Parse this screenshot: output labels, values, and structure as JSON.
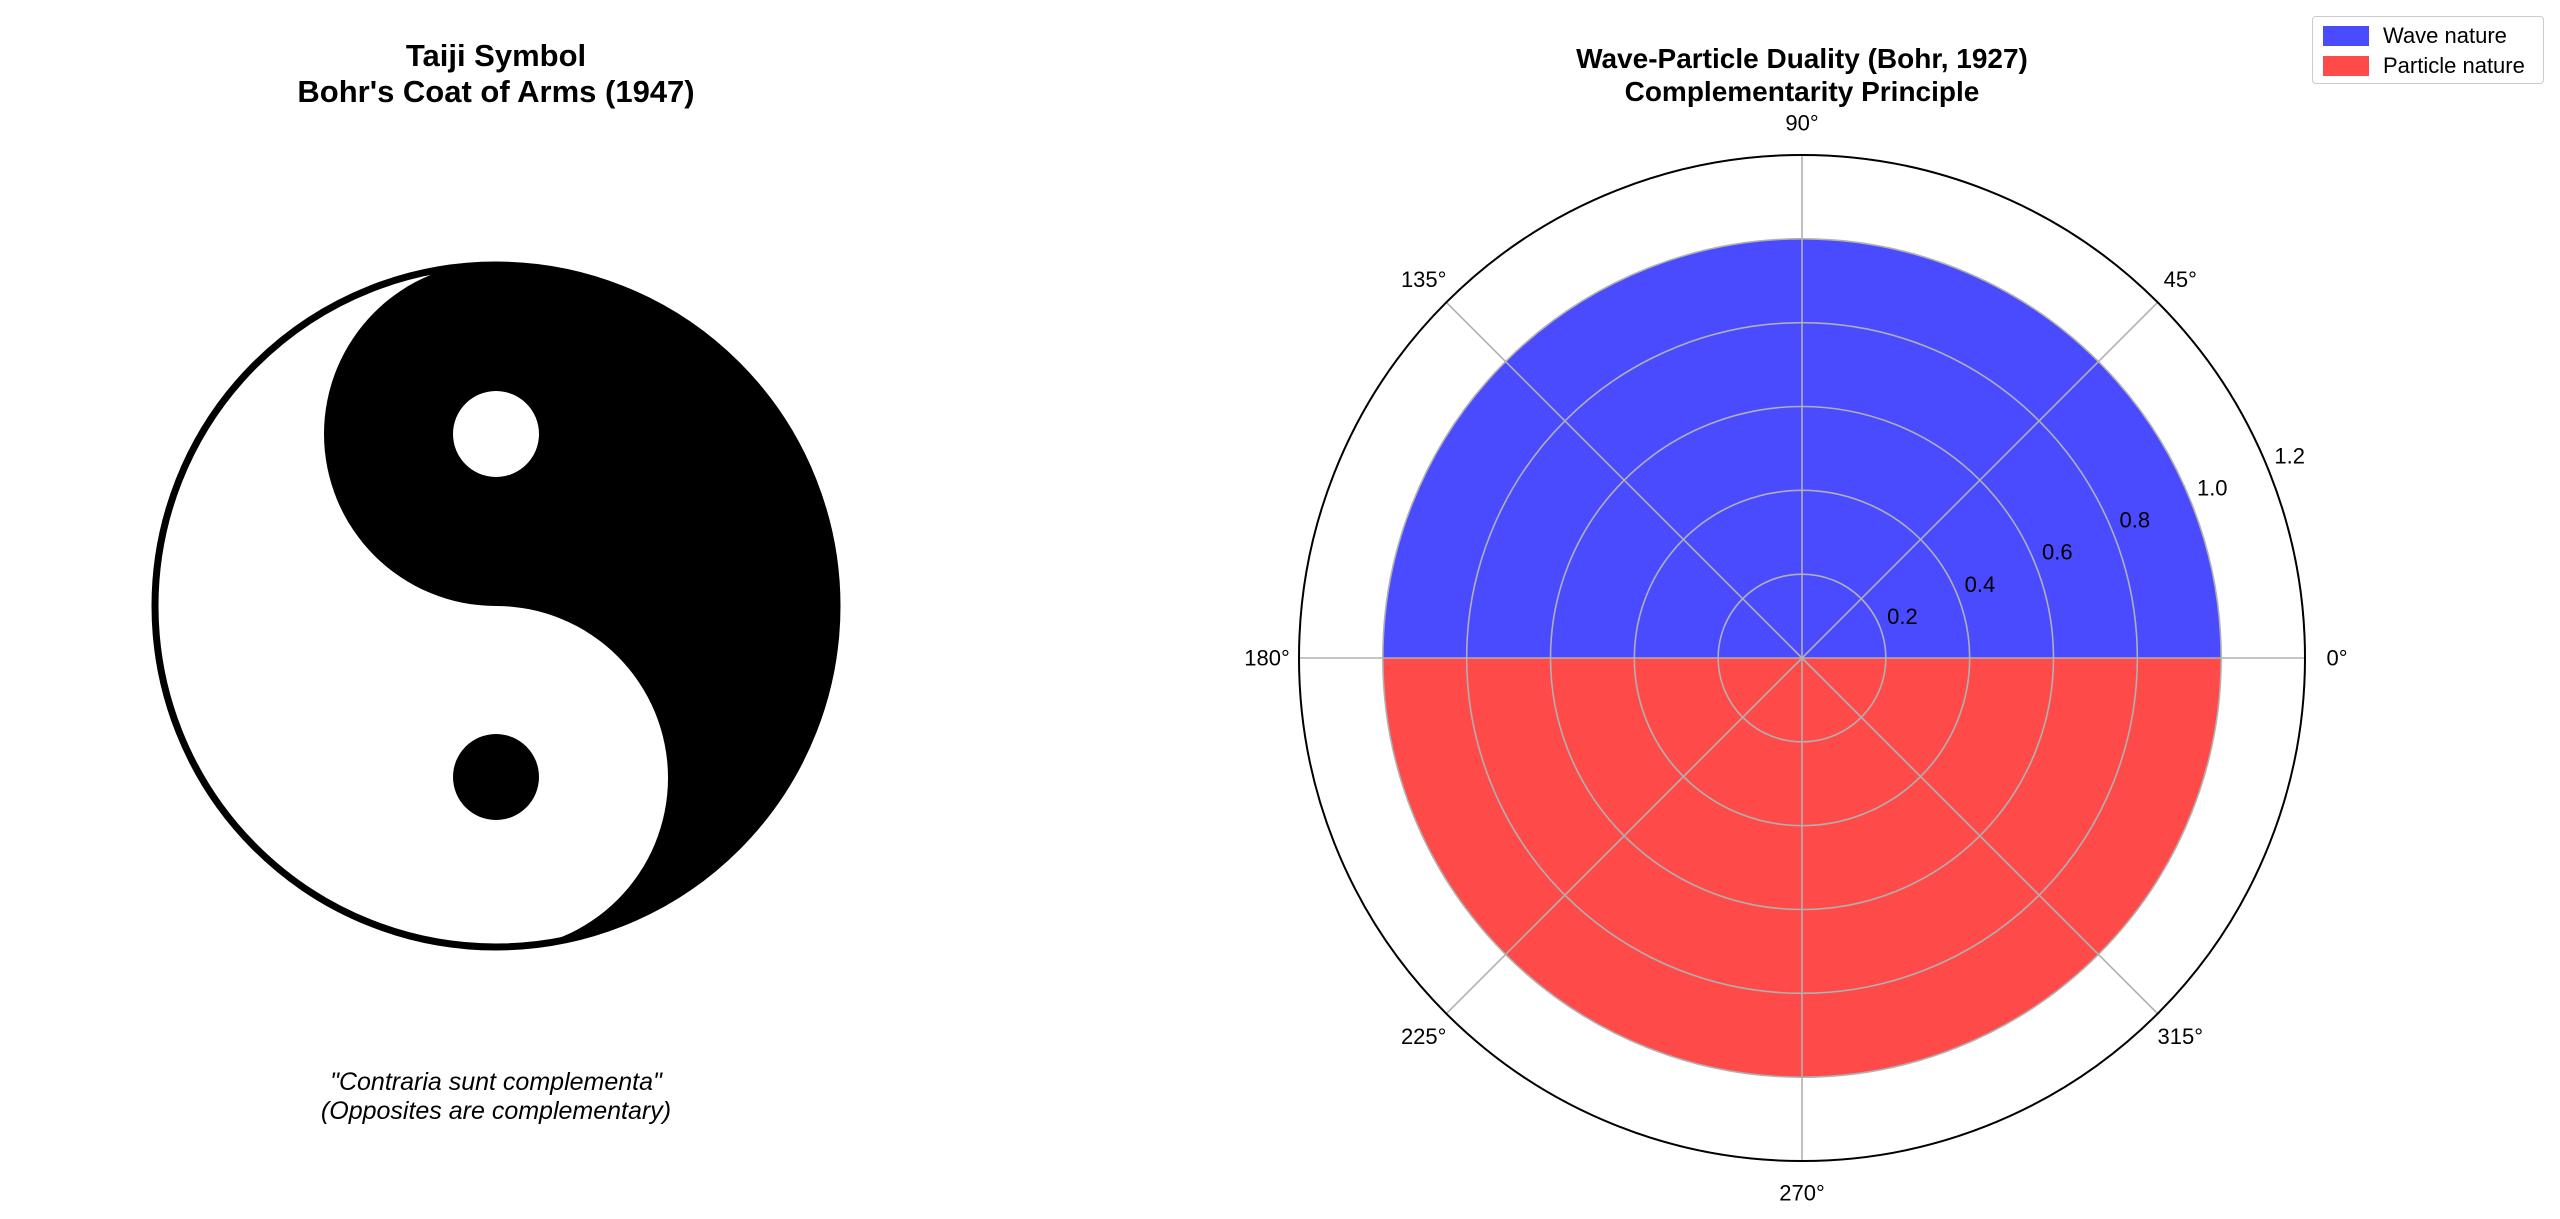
{
  "left_panel": {
    "title_line1": "Taiji Symbol",
    "title_line2": "Bohr's Coat of Arms (1947)",
    "motto_line1": "\"Contraria sunt complementa\"",
    "motto_line2": "(Opposites are complementary)"
  },
  "chart_data": {
    "type": "polar-area",
    "title": "Wave-Particle Duality (Bohr, 1927)",
    "subtitle": "Complementarity Principle",
    "theta_ticks": [
      "0°",
      "45°",
      "90°",
      "135°",
      "180°",
      "225°",
      "270°",
      "315°"
    ],
    "r_ticks": [
      "0.2",
      "0.4",
      "0.6",
      "0.8",
      "1.0",
      "1.2"
    ],
    "rlim": [
      0,
      1.2
    ],
    "grid": true,
    "legend_position": "top-right",
    "series": [
      {
        "name": "Wave nature",
        "theta_start_deg": 0,
        "theta_end_deg": 180,
        "r": 1.0,
        "color": "#4a4aff"
      },
      {
        "name": "Particle nature",
        "theta_start_deg": 180,
        "theta_end_deg": 360,
        "r": 1.0,
        "color": "#ff4a4a"
      }
    ]
  }
}
